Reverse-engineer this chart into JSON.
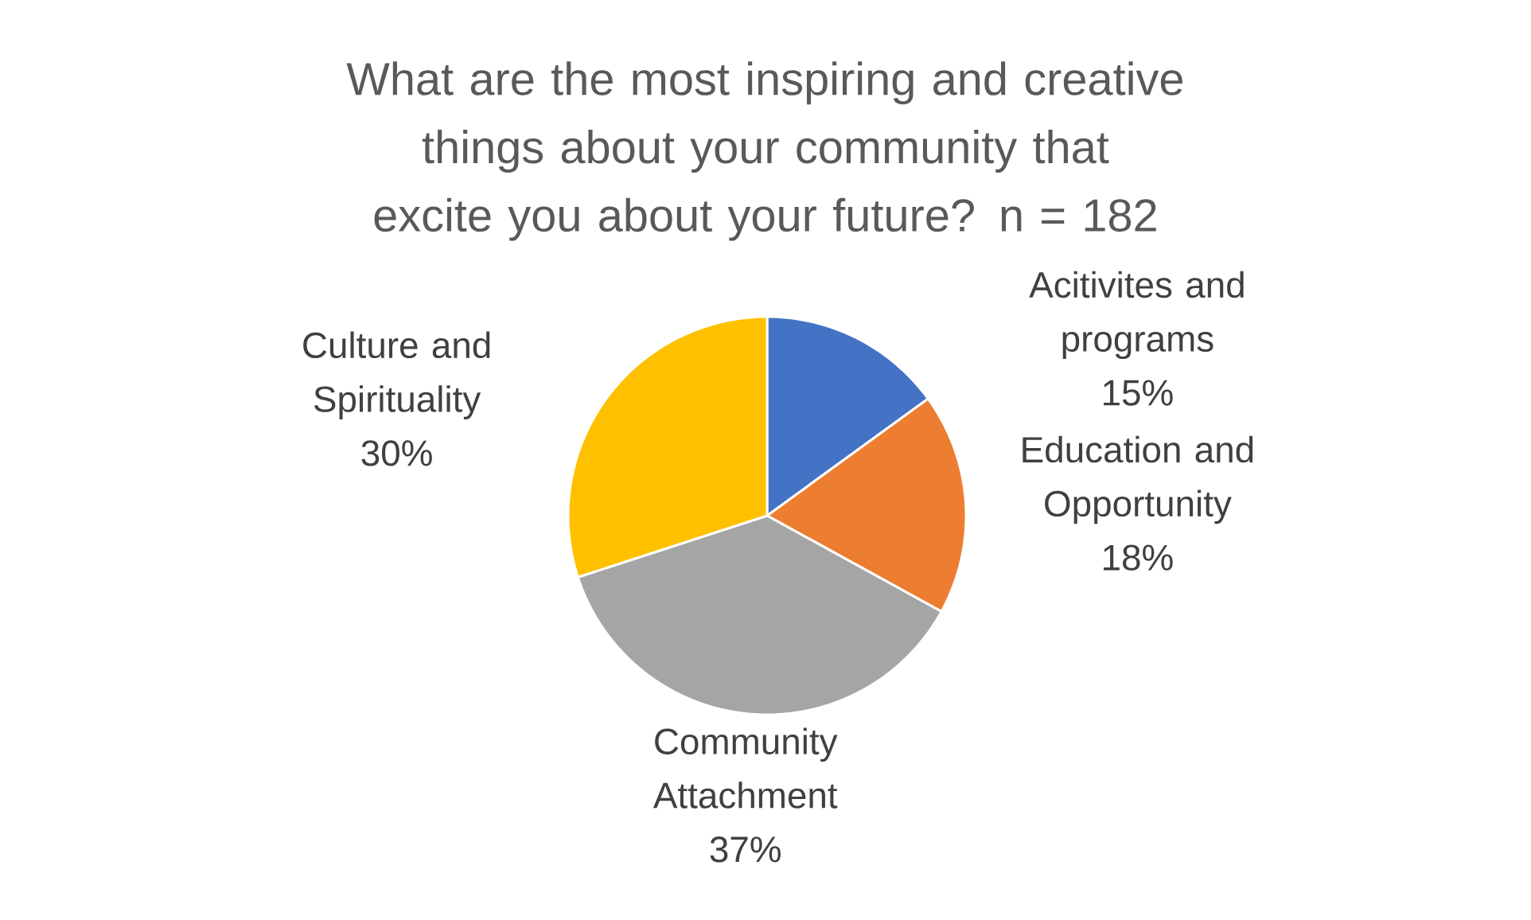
{
  "chart_data": {
    "type": "pie",
    "title": "What are the most inspiring and creative things about your community that excite you about your future? n = 182",
    "categories": [
      "Acitivites and programs",
      "Education and Opportunity",
      "Community Attachment",
      "Culture and Spirituality"
    ],
    "values": [
      15,
      18,
      37,
      30
    ],
    "colors": [
      "#4472c4",
      "#ed7d31",
      "#a5a5a5",
      "#ffc000"
    ],
    "value_labels": [
      "15%",
      "18%",
      "37%",
      "30%"
    ]
  }
}
